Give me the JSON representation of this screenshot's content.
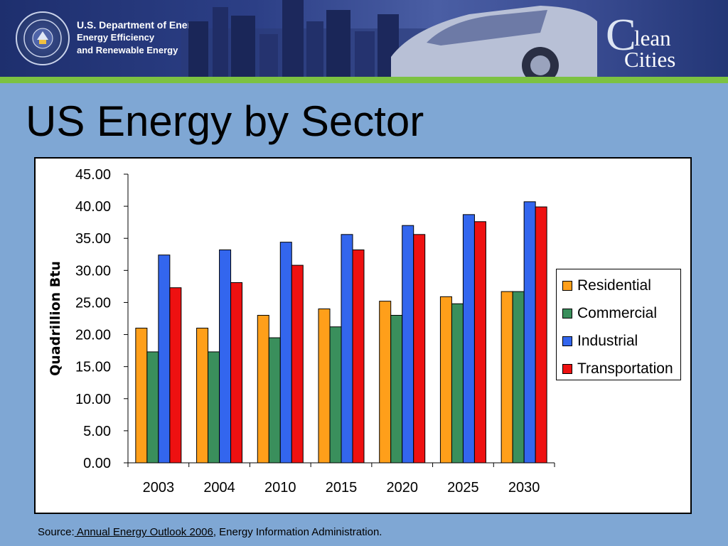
{
  "header": {
    "agency_line1": "U.S. Department of Energy",
    "agency_line2": "Energy Efficiency",
    "agency_line3": "and Renewable Energy",
    "brand_c": "C",
    "brand_lean": "lean",
    "brand_cities": "Cities"
  },
  "slide": {
    "title": "US Energy by Sector"
  },
  "source": {
    "prefix": "Source:",
    "link_text": "  Annual Energy Outlook 2006",
    "suffix": ", Energy Information Administration."
  },
  "colors": {
    "background": "#7fa7d4",
    "header_accent": "#7cc242",
    "Residential": "#ff9f1a",
    "Commercial": "#3a8f5c",
    "Industrial": "#3366ee",
    "Transportation": "#ee1111"
  },
  "chart_data": {
    "type": "bar",
    "ylabel": "Quadrillion Btu",
    "ylim": [
      0,
      45
    ],
    "yticks": [
      "0.00",
      "5.00",
      "10.00",
      "15.00",
      "20.00",
      "25.00",
      "30.00",
      "35.00",
      "40.00",
      "45.00"
    ],
    "categories": [
      "2003",
      "2004",
      "2010",
      "2015",
      "2020",
      "2025",
      "2030"
    ],
    "legend_position": "right",
    "series": [
      {
        "name": "Residential",
        "values": [
          21.0,
          21.0,
          23.0,
          24.0,
          25.2,
          25.9,
          26.7
        ]
      },
      {
        "name": "Commercial",
        "values": [
          17.3,
          17.3,
          19.5,
          21.2,
          23.0,
          24.8,
          26.7
        ]
      },
      {
        "name": "Industrial",
        "values": [
          32.4,
          33.2,
          34.4,
          35.6,
          37.0,
          38.7,
          40.7
        ]
      },
      {
        "name": "Transportation",
        "values": [
          27.3,
          28.1,
          30.8,
          33.2,
          35.6,
          37.6,
          39.9
        ]
      }
    ]
  }
}
